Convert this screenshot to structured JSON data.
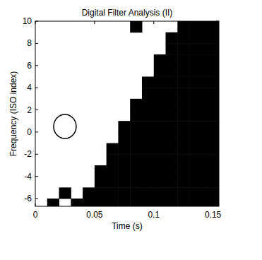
{
  "chart_data": {
    "type": "heatmap",
    "title": "Digital Filter Analysis (II)",
    "x_label": "Time (s)",
    "y_label": "Frequency (ISO index)",
    "xlim": [
      0,
      0.155
    ],
    "ylim": [
      -6.7,
      10
    ],
    "xticks": [
      0,
      0.05,
      0.1,
      0.15
    ],
    "yticks": [
      -6,
      -4,
      -2,
      0,
      2,
      4,
      6,
      8,
      10
    ],
    "color": "#000000",
    "x_bins": [
      0,
      0.01,
      0.02,
      0.03,
      0.04,
      0.05,
      0.06,
      0.07,
      0.08,
      0.09,
      0.1,
      0.11,
      0.12,
      0.13,
      0.14,
      0.15,
      0.155
    ],
    "y_bins": [
      -7,
      -6,
      -5,
      -4,
      -3,
      -2,
      -1,
      0,
      1,
      2,
      3,
      4,
      5,
      6,
      7,
      8,
      9,
      10
    ],
    "cells": [
      [
        0,
        1,
        0,
        1,
        1,
        1,
        1,
        1,
        1,
        1,
        1,
        1,
        1,
        1,
        1,
        1
      ],
      [
        0,
        0,
        1,
        0,
        1,
        1,
        1,
        1,
        1,
        1,
        1,
        1,
        1,
        1,
        1,
        1
      ],
      [
        0,
        0,
        0,
        0,
        0,
        1,
        1,
        1,
        1,
        1,
        1,
        1,
        1,
        1,
        1,
        1
      ],
      [
        0,
        0,
        0,
        0,
        0,
        1,
        1,
        1,
        1,
        1,
        1,
        1,
        1,
        1,
        1,
        1
      ],
      [
        0,
        0,
        0,
        0,
        0,
        0,
        1,
        1,
        1,
        1,
        1,
        1,
        1,
        1,
        1,
        1
      ],
      [
        0,
        0,
        0,
        0,
        0,
        0,
        1,
        1,
        1,
        1,
        1,
        1,
        1,
        1,
        1,
        1
      ],
      [
        0,
        0,
        0,
        0,
        0,
        0,
        0,
        1,
        1,
        1,
        1,
        1,
        1,
        1,
        1,
        1
      ],
      [
        0,
        0,
        0,
        0,
        0,
        0,
        0,
        1,
        1,
        1,
        1,
        1,
        1,
        1,
        1,
        1
      ],
      [
        0,
        0,
        0,
        0,
        0,
        0,
        0,
        0,
        1,
        1,
        1,
        1,
        1,
        1,
        1,
        1
      ],
      [
        0,
        0,
        0,
        0,
        0,
        0,
        0,
        0,
        1,
        1,
        1,
        1,
        1,
        1,
        1,
        1
      ],
      [
        0,
        0,
        0,
        0,
        0,
        0,
        0,
        0,
        0,
        1,
        1,
        1,
        1,
        1,
        1,
        1
      ],
      [
        0,
        0,
        0,
        0,
        0,
        0,
        0,
        0,
        0,
        1,
        1,
        1,
        1,
        1,
        1,
        1
      ],
      [
        0,
        0,
        0,
        0,
        0,
        0,
        0,
        0,
        0,
        0,
        1,
        1,
        1,
        1,
        1,
        1
      ],
      [
        0,
        0,
        0,
        0,
        0,
        0,
        0,
        0,
        0,
        0,
        1,
        1,
        1,
        1,
        1,
        1
      ],
      [
        0,
        0,
        0,
        0,
        0,
        0,
        0,
        0,
        0,
        0,
        0,
        1,
        1,
        1,
        1,
        1
      ],
      [
        0,
        0,
        0,
        0,
        0,
        0,
        0,
        0,
        0,
        0,
        0,
        1,
        1,
        1,
        1,
        1
      ],
      [
        0,
        0,
        0,
        0,
        0,
        0,
        0,
        0,
        1,
        0,
        0,
        0,
        1,
        1,
        1,
        1
      ]
    ],
    "annotations": [
      {
        "x": 0.025,
        "y": 0.5
      }
    ]
  }
}
